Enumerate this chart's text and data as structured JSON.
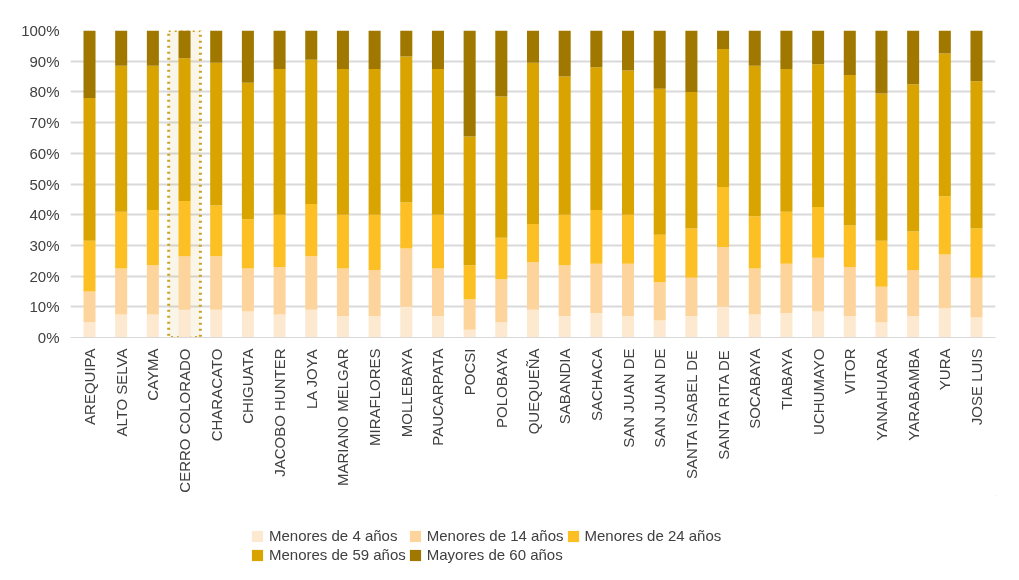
{
  "chart_data": {
    "type": "bar",
    "stacked": true,
    "categories": [
      "AREQUIPA",
      "ALTO SELVA",
      "CAYMA",
      "CERRO COLORADO",
      "CHARACATO",
      "CHIGUATA",
      "JACOBO HUNTER",
      "LA JOYA",
      "MARIANO MELGAR",
      "MIRAFLORES",
      "MOLLEBAYA",
      "PAUCARPATA",
      "POCSI",
      "POLOBAYA",
      "QUEQUEÑA",
      "SABANDIA",
      "SACHACA",
      "SAN JUAN DE",
      "SAN JUAN DE",
      "SANTA ISABEL DE",
      "SANTA RITA DE",
      "SOCABAYA",
      "TIABAYA",
      "UCHUMAYO",
      "VITOR",
      "YANAHUARA",
      "YARABAMBA",
      "YURA",
      "JOSE LUIS"
    ],
    "series": [
      {
        "name": "Menores de 4 años",
        "color": "#fde9d0",
        "values": [
          5,
          7.5,
          7.5,
          9,
          9,
          8.5,
          7.5,
          9,
          7,
          7,
          10,
          7,
          2.5,
          5,
          9,
          7,
          8,
          7,
          5.5,
          7,
          10,
          7.5,
          8,
          8.5,
          7,
          5,
          7,
          9.5,
          6.5
        ]
      },
      {
        "name": "Menores de 14 años",
        "color": "#fdd59c",
        "values": [
          10,
          15,
          16,
          17.5,
          17.5,
          14,
          15.5,
          17.5,
          15.5,
          15,
          19,
          15.5,
          10,
          14,
          15.5,
          16.5,
          16,
          17,
          12.5,
          12.5,
          19.5,
          15,
          16,
          17.5,
          16,
          11.5,
          15,
          17.5,
          13
        ]
      },
      {
        "name": "Menores de 24 años",
        "color": "#fcbf24",
        "values": [
          16.5,
          18.5,
          18,
          18,
          16.5,
          16,
          17,
          17,
          17.5,
          18,
          15,
          17.5,
          11,
          13.5,
          12.5,
          16.5,
          17.5,
          16,
          15.5,
          16,
          19.5,
          17,
          17,
          16.5,
          13.5,
          15,
          12.5,
          19,
          16
        ]
      },
      {
        "name": "Menores de 59 años",
        "color": "#d9a300",
        "values": [
          46.5,
          47.5,
          47,
          46.5,
          46.5,
          44.5,
          47.5,
          47,
          47.5,
          47.5,
          47.5,
          47.5,
          42,
          46,
          52.5,
          45,
          46.5,
          47,
          47.5,
          44.5,
          45,
          49,
          46.5,
          46.5,
          49,
          48,
          48,
          46.5,
          48
        ]
      },
      {
        "name": "Mayores de 60 años",
        "color": "#a07800",
        "values": [
          22,
          11.5,
          11.5,
          9,
          10.5,
          17,
          12.5,
          9.5,
          12.5,
          12.5,
          8.5,
          12.5,
          34.5,
          21.5,
          10.5,
          15,
          12,
          13,
          19,
          20,
          6,
          11.5,
          12.5,
          11,
          14.5,
          20.5,
          17.5,
          7.5,
          16.5
        ]
      }
    ],
    "ylim": [
      0,
      100
    ],
    "yticks": [
      {
        "value": 0,
        "label": "0%"
      },
      {
        "value": 10,
        "label": "10%"
      },
      {
        "value": 20,
        "label": "20%"
      },
      {
        "value": 30,
        "label": "30%"
      },
      {
        "value": 40,
        "label": "40%"
      },
      {
        "value": 50,
        "label": "50%"
      },
      {
        "value": 60,
        "label": "60%"
      },
      {
        "value": 70,
        "label": "70%"
      },
      {
        "value": 80,
        "label": "80%"
      },
      {
        "value": 90,
        "label": "90%"
      },
      {
        "value": 100,
        "label": "100%"
      }
    ],
    "bands": [
      {
        "axis": "x",
        "from": "CERRO COLORADO",
        "to": "CERRO COLORADO",
        "color": "#c9a227"
      }
    ],
    "grid": "y",
    "legend": "bottom"
  }
}
